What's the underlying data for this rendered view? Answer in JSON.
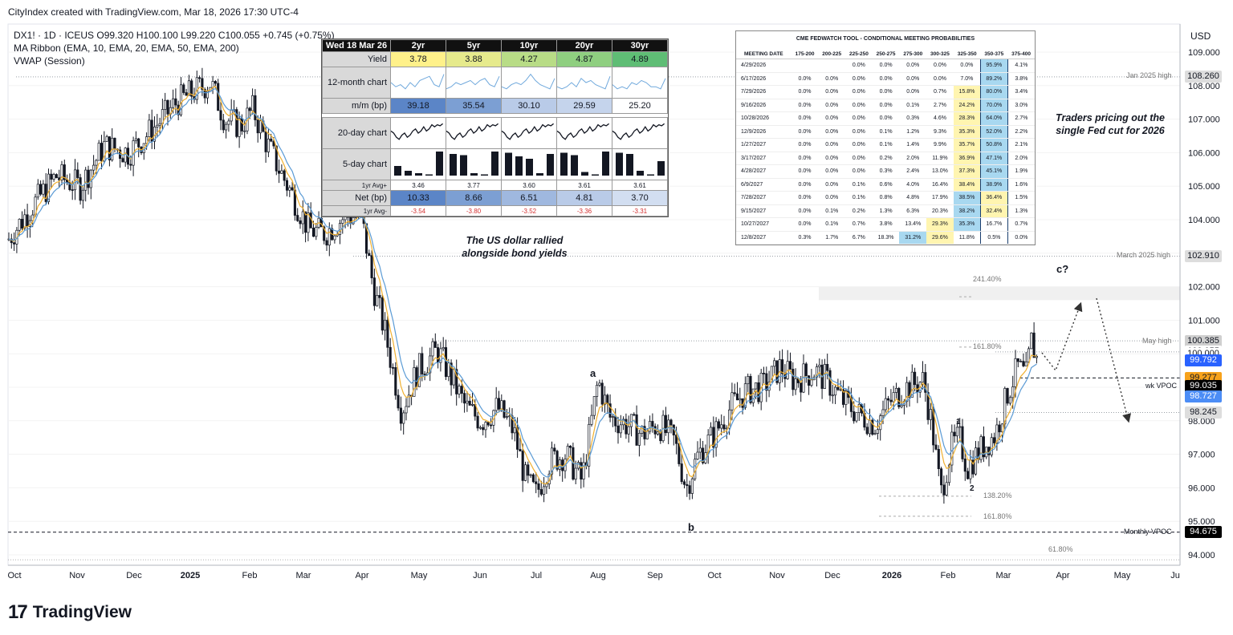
{
  "header": {
    "attribution": "CityIndex created with TradingView.com, Mar 18, 2026 17:30 UTC-4"
  },
  "legend": {
    "symbol_line": "DX1! · 1D · ICEUS O99.320 H100.100 L99.220 C100.055 +0.745 (+0.75%)",
    "ma_line": "MA Ribbon (EMA, 10, EMA, 20, EMA, 50, EMA, 200)",
    "vwap_line": "VWAP (Session)"
  },
  "y_axis": {
    "currency": "USD",
    "ticks": [
      "109.000",
      "108.000",
      "107.000",
      "106.000",
      "105.000",
      "104.000",
      "103.000",
      "102.000",
      "101.000",
      "100.000",
      "99.000",
      "98.000",
      "97.000",
      "96.000",
      "95.000",
      "94.000"
    ]
  },
  "x_axis": {
    "ticks": [
      "Oct",
      "Nov",
      "Dec",
      "2025",
      "Feb",
      "Mar",
      "Apr",
      "May",
      "Jun",
      "Jul",
      "Aug",
      "Sep",
      "Oct",
      "Nov",
      "Dec",
      "2026",
      "Feb",
      "Mar",
      "Apr",
      "May",
      "Ju"
    ]
  },
  "price_tags": [
    {
      "value": "108.260",
      "bg": "#dddddd",
      "fg": "#131722"
    },
    {
      "value": "102.910",
      "bg": "#dddddd",
      "fg": "#131722"
    },
    {
      "value": "100.385",
      "bg": "#cfcfcf",
      "fg": "#131722"
    },
    {
      "value": "100.055",
      "bg": "#ffffff",
      "fg": "#131722"
    },
    {
      "value": "100.000",
      "bg": "#ffffff",
      "fg": "#131722"
    },
    {
      "value": "99.792",
      "bg": "#2962ff",
      "fg": "#ffffff"
    },
    {
      "value": "99.277",
      "bg": "#f7a21b",
      "fg": "#131722"
    },
    {
      "value": "99.035",
      "bg": "#000000",
      "fg": "#ffffff"
    },
    {
      "value": "98.727",
      "bg": "#4c8df6",
      "fg": "#ffffff"
    },
    {
      "value": "98.245",
      "bg": "#dddddd",
      "fg": "#131722"
    },
    {
      "value": "94.675",
      "bg": "#000000",
      "fg": "#ffffff"
    }
  ],
  "level_labels": {
    "jan_high": "Jan 2025 high",
    "march_high": "March 2025 high",
    "may_high": "May high",
    "wk_vpoc": "wk VPOC",
    "monthly_vpoc": "Monthly VPOC",
    "fib_241": "241.40%",
    "fib_161_top": "161.80%",
    "fib_138": "138.20%",
    "fib_161_bot": "161.80%",
    "fib_618": "61.80%"
  },
  "wave_labels": {
    "a": "a",
    "b": "b",
    "c": "c?",
    "one": "1",
    "two": "2"
  },
  "annotations": {
    "usd_note": [
      "The US dollar rallied",
      "alongside bond yields"
    ],
    "fed_note": [
      "Traders pricing out the",
      "single Fed cut for 2026"
    ]
  },
  "yields_table": {
    "date": "Wed 18 Mar 26",
    "tenors": [
      "2yr",
      "5yr",
      "10yr",
      "20yr",
      "30yr"
    ],
    "yield_label": "Yield",
    "yields": [
      "3.78",
      "3.88",
      "4.27",
      "4.87",
      "4.89"
    ],
    "yield_colors": [
      "#fff18a",
      "#e6ea8c",
      "#b8dc86",
      "#8fcf80",
      "#5fbd75"
    ],
    "chart12_label": "12-month chart",
    "mm_label": "m/m (bp)",
    "mm": [
      "39.18",
      "35.54",
      "30.10",
      "29.59",
      "25.20"
    ],
    "mm_colors": [
      "#5b85c7",
      "#7c9fd3",
      "#b9cbe8",
      "#c5d4ec",
      "#ffffff"
    ],
    "chart20_label": "20-day chart",
    "chart5_label": "5-day chart",
    "avg_plus_label": "1yr Avg+",
    "avg_plus": [
      "3.46",
      "3.77",
      "3.60",
      "3.61",
      "3.61"
    ],
    "net_label": "Net (bp)",
    "net": [
      "10.33",
      "8.66",
      "6.51",
      "4.81",
      "3.70"
    ],
    "net_colors": [
      "#5b85c7",
      "#7c9fd3",
      "#9fb8df",
      "#b9cbe8",
      "#d2def1"
    ],
    "avg_minus_label": "1yr Avg-",
    "avg_minus": [
      "-3.54",
      "-3.80",
      "-3.52",
      "-3.36",
      "-3.31"
    ]
  },
  "fedwatch": {
    "title": "CME FEDWATCH TOOL - CONDITIONAL MEETING PROBABILITIES",
    "columns": [
      "MEETING DATE",
      "175-200",
      "200-225",
      "225-250",
      "250-275",
      "275-300",
      "300-325",
      "325-350",
      "350-375",
      "375-400"
    ],
    "rows": [
      [
        "4/29/2026",
        "",
        "",
        "0.0%",
        "0.0%",
        "0.0%",
        "0.0%",
        "0.0%",
        "95.9%",
        "4.1%"
      ],
      [
        "6/17/2026",
        "0.0%",
        "0.0%",
        "0.0%",
        "0.0%",
        "0.0%",
        "0.0%",
        "7.0%",
        "89.2%",
        "3.8%"
      ],
      [
        "7/29/2026",
        "0.0%",
        "0.0%",
        "0.0%",
        "0.0%",
        "0.0%",
        "0.7%",
        "15.8%",
        "80.0%",
        "3.4%"
      ],
      [
        "9/16/2026",
        "0.0%",
        "0.0%",
        "0.0%",
        "0.0%",
        "0.1%",
        "2.7%",
        "24.2%",
        "70.0%",
        "3.0%"
      ],
      [
        "10/28/2026",
        "0.0%",
        "0.0%",
        "0.0%",
        "0.0%",
        "0.3%",
        "4.6%",
        "28.3%",
        "64.0%",
        "2.7%"
      ],
      [
        "12/9/2026",
        "0.0%",
        "0.0%",
        "0.0%",
        "0.1%",
        "1.2%",
        "9.3%",
        "35.3%",
        "52.0%",
        "2.2%"
      ],
      [
        "1/27/2027",
        "0.0%",
        "0.0%",
        "0.0%",
        "0.1%",
        "1.4%",
        "9.9%",
        "35.7%",
        "50.8%",
        "2.1%"
      ],
      [
        "3/17/2027",
        "0.0%",
        "0.0%",
        "0.0%",
        "0.2%",
        "2.0%",
        "11.9%",
        "36.9%",
        "47.1%",
        "2.0%"
      ],
      [
        "4/28/2027",
        "0.0%",
        "0.0%",
        "0.0%",
        "0.3%",
        "2.4%",
        "13.0%",
        "37.3%",
        "45.1%",
        "1.9%"
      ],
      [
        "6/9/2027",
        "0.0%",
        "0.0%",
        "0.1%",
        "0.6%",
        "4.0%",
        "16.4%",
        "38.4%",
        "38.9%",
        "1.6%"
      ],
      [
        "7/28/2027",
        "0.0%",
        "0.0%",
        "0.1%",
        "0.8%",
        "4.8%",
        "17.9%",
        "38.5%",
        "36.4%",
        "1.5%"
      ],
      [
        "9/15/2027",
        "0.0%",
        "0.1%",
        "0.2%",
        "1.3%",
        "6.3%",
        "20.3%",
        "38.2%",
        "32.4%",
        "1.3%"
      ],
      [
        "10/27/2027",
        "0.0%",
        "0.1%",
        "0.7%",
        "3.8%",
        "13.4%",
        "29.3%",
        "35.3%",
        "16.7%",
        "0.7%"
      ],
      [
        "12/8/2027",
        "0.3%",
        "1.7%",
        "6.7%",
        "18.3%",
        "31.2%",
        "29.6%",
        "11.8%",
        "0.5%",
        "0.0%"
      ]
    ],
    "highlight_max": "#a8d8f0",
    "highlight_second": "#fff5b0"
  },
  "brand": {
    "logo": "17",
    "name": "TradingView"
  },
  "chart_data": {
    "type": "candlestick",
    "symbol": "DX1!",
    "interval": "1D",
    "ylim": [
      93.6,
      109.6
    ],
    "x": [
      "2024-10",
      "2024-11",
      "2024-12",
      "2025-01",
      "2025-02",
      "2025-03",
      "2025-04",
      "2025-05",
      "2025-06",
      "2025-07",
      "2025-08",
      "2025-09",
      "2025-10",
      "2025-11",
      "2025-12",
      "2026-01",
      "2026-02",
      "2026-03"
    ],
    "series": [
      {
        "name": "Close",
        "values": [
          103.8,
          105.6,
          106.9,
          108.0,
          107.3,
          104.1,
          99.8,
          99.4,
          97.0,
          99.8,
          98.2,
          97.7,
          99.7,
          99.4,
          98.2,
          97.1,
          97.6,
          100.055
        ]
      }
    ],
    "levels": [
      {
        "label": "Jan 2025 high",
        "value": 108.26
      },
      {
        "label": "March 2025 high",
        "value": 102.91
      },
      {
        "label": "May high",
        "value": 100.385
      },
      {
        "label": "wk VPOC",
        "value": 99.277
      },
      {
        "label": "Monthly VPOC",
        "value": 94.675
      }
    ]
  }
}
